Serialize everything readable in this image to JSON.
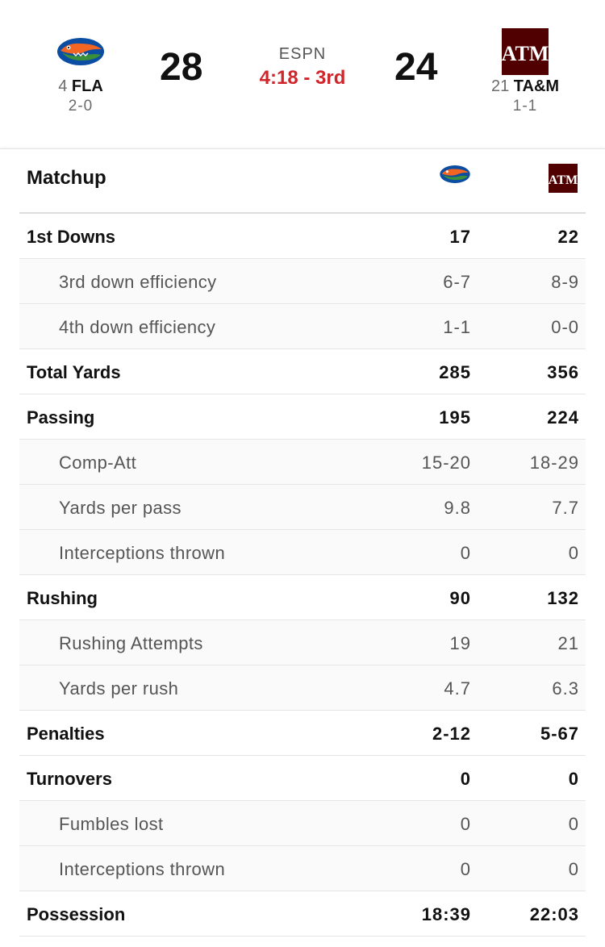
{
  "game": {
    "network": "ESPN",
    "clock": "4:18 - 3rd",
    "home": {
      "rank": "4",
      "abbr": "FLA",
      "record": "2-0",
      "score": "28",
      "color": "#0b4da2",
      "accent": "#f26522"
    },
    "away": {
      "rank": "21",
      "abbr": "TA&M",
      "record": "1-1",
      "score": "24",
      "color": "#500000",
      "logo_text": "ATM"
    }
  },
  "matchup": {
    "title": "Matchup",
    "rows": [
      {
        "type": "main",
        "label": "1st Downs",
        "home": "17",
        "away": "22"
      },
      {
        "type": "sub",
        "label": "3rd down efficiency",
        "home": "6-7",
        "away": "8-9"
      },
      {
        "type": "sub",
        "label": "4th down efficiency",
        "home": "1-1",
        "away": "0-0"
      },
      {
        "type": "main",
        "label": "Total Yards",
        "home": "285",
        "away": "356"
      },
      {
        "type": "main",
        "label": "Passing",
        "home": "195",
        "away": "224"
      },
      {
        "type": "sub",
        "label": "Comp-Att",
        "home": "15-20",
        "away": "18-29"
      },
      {
        "type": "sub",
        "label": "Yards per pass",
        "home": "9.8",
        "away": "7.7"
      },
      {
        "type": "sub",
        "label": "Interceptions thrown",
        "home": "0",
        "away": "0"
      },
      {
        "type": "main",
        "label": "Rushing",
        "home": "90",
        "away": "132"
      },
      {
        "type": "sub",
        "label": "Rushing Attempts",
        "home": "19",
        "away": "21"
      },
      {
        "type": "sub",
        "label": "Yards per rush",
        "home": "4.7",
        "away": "6.3"
      },
      {
        "type": "main",
        "label": "Penalties",
        "home": "2-12",
        "away": "5-67"
      },
      {
        "type": "main",
        "label": "Turnovers",
        "home": "0",
        "away": "0"
      },
      {
        "type": "sub",
        "label": "Fumbles lost",
        "home": "0",
        "away": "0"
      },
      {
        "type": "sub",
        "label": "Interceptions thrown",
        "home": "0",
        "away": "0"
      },
      {
        "type": "main",
        "label": "Possession",
        "home": "18:39",
        "away": "22:03"
      }
    ]
  }
}
